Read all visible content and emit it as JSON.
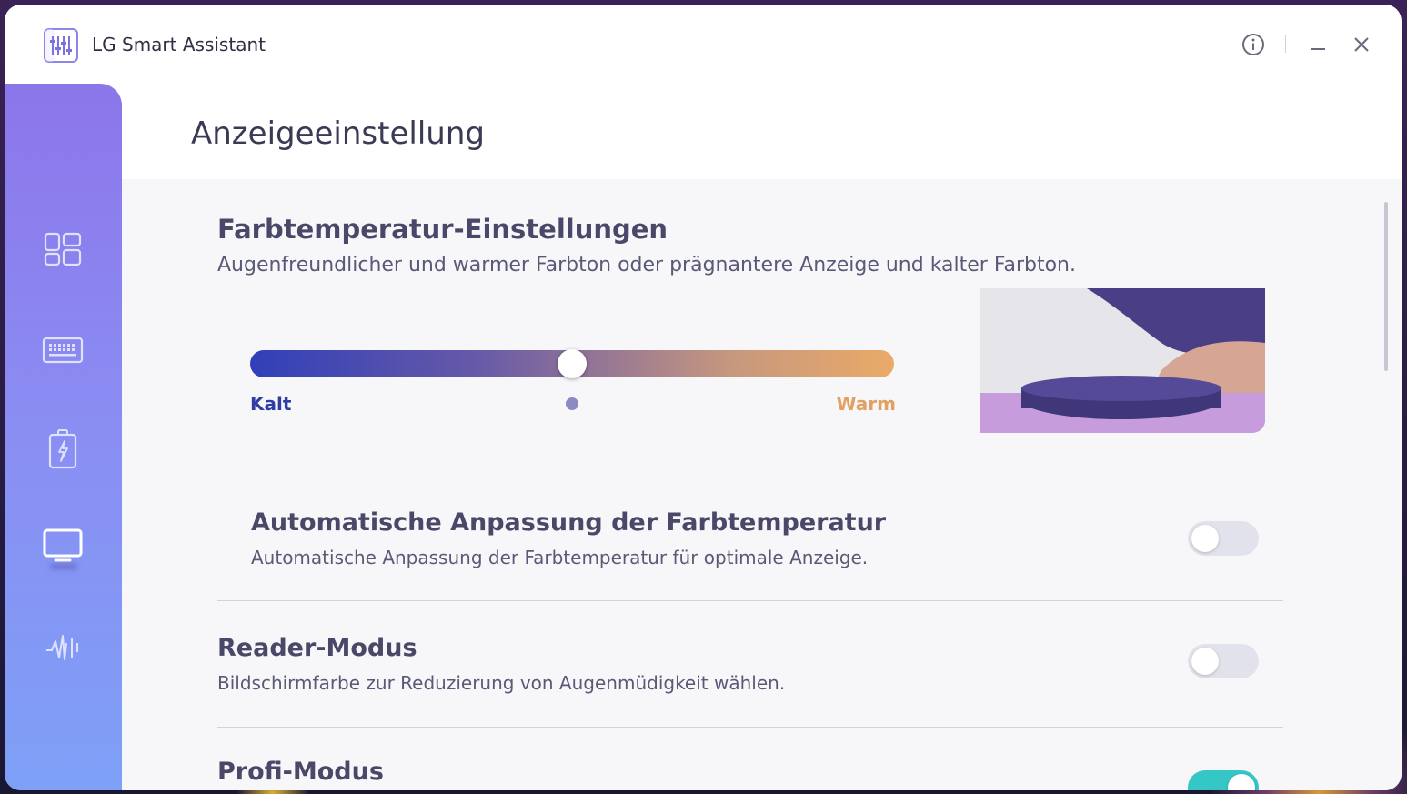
{
  "app": {
    "title": "LG Smart Assistant"
  },
  "titlebar": {
    "info_icon": "info-circle-icon",
    "minimize_icon": "minimize-icon",
    "close_icon": "close-icon"
  },
  "sidebar": {
    "items": [
      {
        "name": "dashboard",
        "icon": "dashboard-grid-icon",
        "active": false
      },
      {
        "name": "keyboard",
        "icon": "keyboard-icon",
        "active": false
      },
      {
        "name": "battery",
        "icon": "battery-charging-icon",
        "active": false
      },
      {
        "name": "display",
        "icon": "monitor-icon",
        "active": true
      },
      {
        "name": "audio",
        "icon": "audio-wave-icon",
        "active": false
      }
    ]
  },
  "page": {
    "title": "Anzeigeeinstellung"
  },
  "color_temp": {
    "title": "Farbtemperatur-Einstellungen",
    "subtitle": "Augenfreundlicher und warmer Farbton oder prägnantere Anzeige und kalter Farbton.",
    "label_cold": "Kalt",
    "label_warm": "Warm",
    "value": 0.5,
    "default": 0.5,
    "colors": {
      "cold": "#3040b8",
      "warm": "#eaaa68"
    }
  },
  "settings": [
    {
      "title": "Automatische Anpassung der Farbtemperatur",
      "description": "Automatische Anpassung der Farbtemperatur für optimale Anzeige.",
      "enabled": false
    },
    {
      "title": "Reader-Modus",
      "description": "Bildschirmfarbe zur Reduzierung von Augenmüdigkeit wählen.",
      "enabled": false
    },
    {
      "title": "Profi-Modus",
      "enabled": true
    }
  ],
  "colors": {
    "accent": "#8c76ea",
    "toggle_on": "#35c6c6"
  }
}
